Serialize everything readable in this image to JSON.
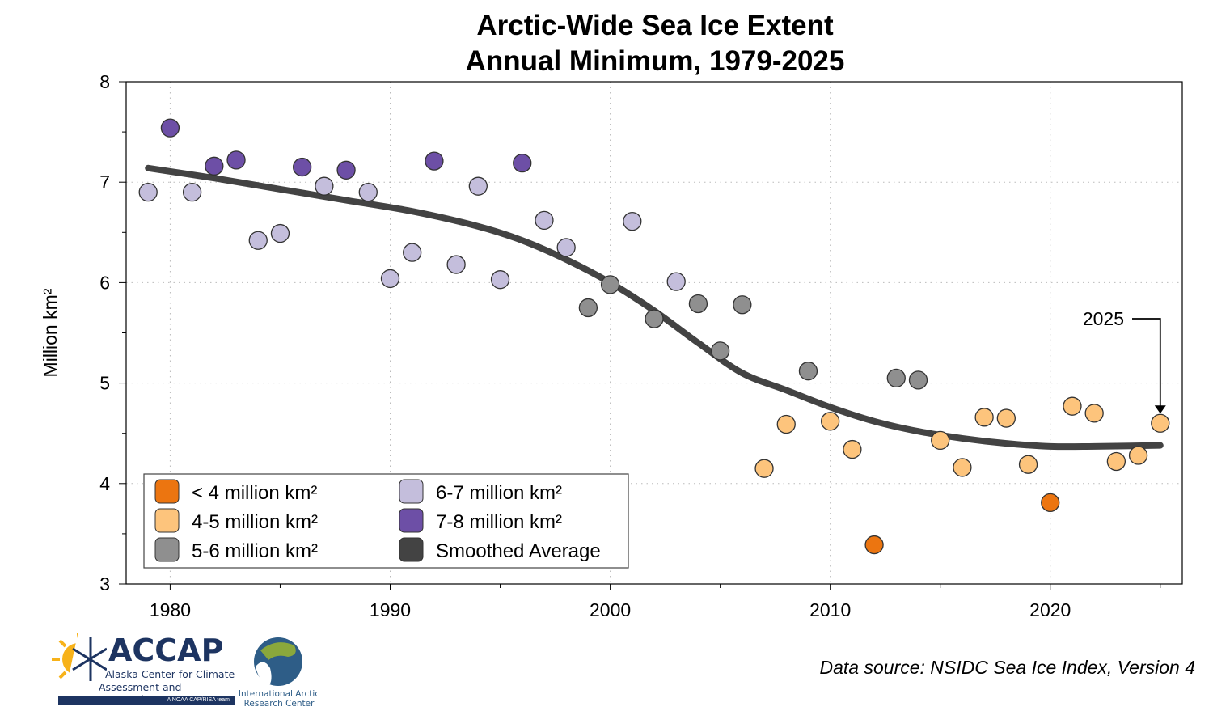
{
  "chart_data": {
    "type": "scatter",
    "title": "Arctic-Wide Sea Ice Extent",
    "subtitle": "Annual Minimum, 1979-2025",
    "xlabel": "",
    "ylabel": "Million km²",
    "xlim": [
      1978,
      2026
    ],
    "ylim": [
      3,
      8
    ],
    "xticks": [
      1980,
      1990,
      2000,
      2010,
      2020
    ],
    "yticks": [
      3,
      4,
      5,
      6,
      7,
      8
    ],
    "grid": true,
    "legend_position": "bottom-left",
    "legend": [
      {
        "label": "< 4 million km²",
        "color": "#ec7510"
      },
      {
        "label": "4-5 million km²",
        "color": "#fdc47c"
      },
      {
        "label": "5-6 million km²",
        "color": "#8f8f8f"
      },
      {
        "label": "6-7 million km²",
        "color": "#c4bedc"
      },
      {
        "label": "7-8 million km²",
        "color": "#6d4fa6"
      },
      {
        "label": "Smoothed Average",
        "color": "#434343"
      }
    ],
    "series": [
      {
        "name": "Annual minimum",
        "x": [
          1979,
          1980,
          1981,
          1982,
          1983,
          1984,
          1985,
          1986,
          1987,
          1988,
          1989,
          1990,
          1991,
          1992,
          1993,
          1994,
          1995,
          1996,
          1997,
          1998,
          1999,
          2000,
          2001,
          2002,
          2003,
          2004,
          2005,
          2006,
          2007,
          2008,
          2009,
          2010,
          2011,
          2012,
          2013,
          2014,
          2015,
          2016,
          2017,
          2018,
          2019,
          2020,
          2021,
          2022,
          2023,
          2024,
          2025
        ],
        "y": [
          6.9,
          7.54,
          6.9,
          7.16,
          7.22,
          6.42,
          6.49,
          7.15,
          6.96,
          7.12,
          6.9,
          6.04,
          6.3,
          7.21,
          6.18,
          6.96,
          6.03,
          7.19,
          6.62,
          6.35,
          5.75,
          5.98,
          6.61,
          5.64,
          6.01,
          5.79,
          5.32,
          5.78,
          4.15,
          4.59,
          5.12,
          4.62,
          4.34,
          3.39,
          5.05,
          5.03,
          4.43,
          4.16,
          4.66,
          4.65,
          4.19,
          3.81,
          4.77,
          4.7,
          4.22,
          4.28,
          4.6
        ]
      },
      {
        "name": "Smoothed Average",
        "x": [
          1979,
          1982,
          1985,
          1988,
          1991,
          1994,
          1996,
          1998,
          2000,
          2002,
          2004,
          2006,
          2008,
          2010,
          2012,
          2014,
          2016,
          2018,
          2020,
          2022,
          2025
        ],
        "y": [
          7.14,
          7.04,
          6.93,
          6.82,
          6.71,
          6.56,
          6.42,
          6.23,
          6.0,
          5.72,
          5.4,
          5.1,
          4.93,
          4.76,
          4.62,
          4.52,
          4.45,
          4.4,
          4.37,
          4.37,
          4.38
        ]
      }
    ],
    "annotations": [
      {
        "text": "2025",
        "x": 2025,
        "y": 4.6
      }
    ]
  },
  "source_note": "Data source: NSIDC Sea Ice Index, Version 4",
  "logos": {
    "accap": "ACCAP",
    "accap_sub1": "Alaska Center for Climate",
    "accap_sub2": "Assessment and Preparedness",
    "accap_tag": "A NOAA CAP/RISA team",
    "iarc1": "International Arctic",
    "iarc2": "Research Center"
  }
}
